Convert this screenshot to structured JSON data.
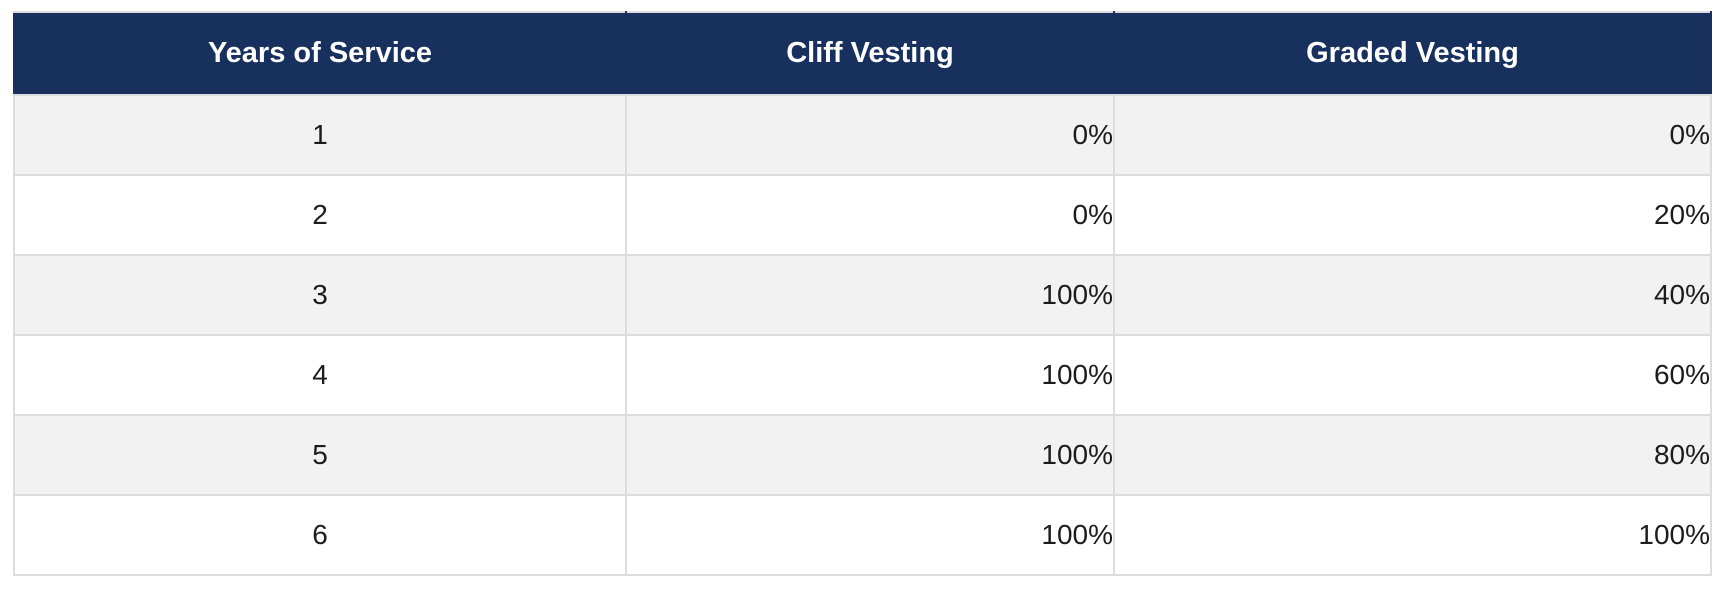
{
  "chart_data": {
    "type": "table",
    "columns": [
      "Years of Service",
      "Cliff Vesting",
      "Graded Vesting"
    ],
    "rows": [
      [
        "1",
        "0%",
        "0%"
      ],
      [
        "2",
        "0%",
        "20%"
      ],
      [
        "3",
        "100%",
        "40%"
      ],
      [
        "4",
        "100%",
        "60%"
      ],
      [
        "5",
        "100%",
        "80%"
      ],
      [
        "6",
        "100%",
        "100%"
      ]
    ],
    "years_of_service": [
      1,
      2,
      3,
      4,
      5,
      6
    ],
    "cliff_vesting_pct": [
      0,
      0,
      100,
      100,
      100,
      100
    ],
    "graded_vesting_pct": [
      0,
      20,
      40,
      60,
      80,
      100
    ],
    "layout": {
      "striped_rows": true,
      "year_alignment": "center",
      "percent_alignment": "right",
      "header_alignment": "center"
    }
  },
  "colors": {
    "header_bg": "#17305e",
    "header_text": "#ffffff",
    "stripe_row_bg": "#f2f2f2",
    "plain_row_bg": "#ffffff",
    "border": "#dcdcdc",
    "body_text": "#1c1c1c"
  }
}
